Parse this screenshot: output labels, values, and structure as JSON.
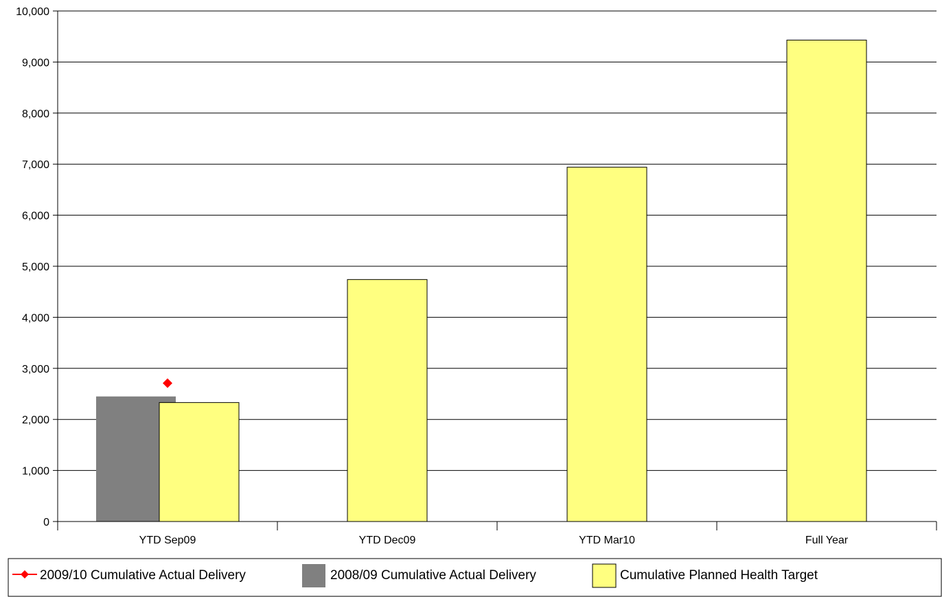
{
  "chart_data": {
    "type": "bar",
    "categories": [
      "YTD Sep09",
      "YTD Dec09",
      "YTD Mar10",
      "Full Year"
    ],
    "ylim": [
      0,
      10000
    ],
    "yticks": [
      0,
      1000,
      2000,
      3000,
      4000,
      5000,
      6000,
      7000,
      8000,
      9000,
      10000
    ],
    "ytick_labels": [
      "0",
      "1,000",
      "2,000",
      "3,000",
      "4,000",
      "5,000",
      "6,000",
      "7,000",
      "8,000",
      "9,000",
      "10,000"
    ],
    "grid": true,
    "legend_position": "bottom",
    "title": "",
    "xlabel": "",
    "ylabel": "",
    "series": [
      {
        "name": "2009/10 Cumulative Actual Delivery",
        "kind": "marker",
        "color": "#ff0000",
        "marker": "diamond",
        "values": [
          2710,
          null,
          null,
          null
        ]
      },
      {
        "name": "2008/09 Cumulative Actual Delivery",
        "kind": "bar",
        "color": "#808080",
        "values": [
          2450,
          null,
          null,
          null
        ]
      },
      {
        "name": "Cumulative Planned Health Target",
        "kind": "bar",
        "color": "#ffff80",
        "values": [
          2330,
          4740,
          6940,
          9430
        ]
      }
    ]
  }
}
